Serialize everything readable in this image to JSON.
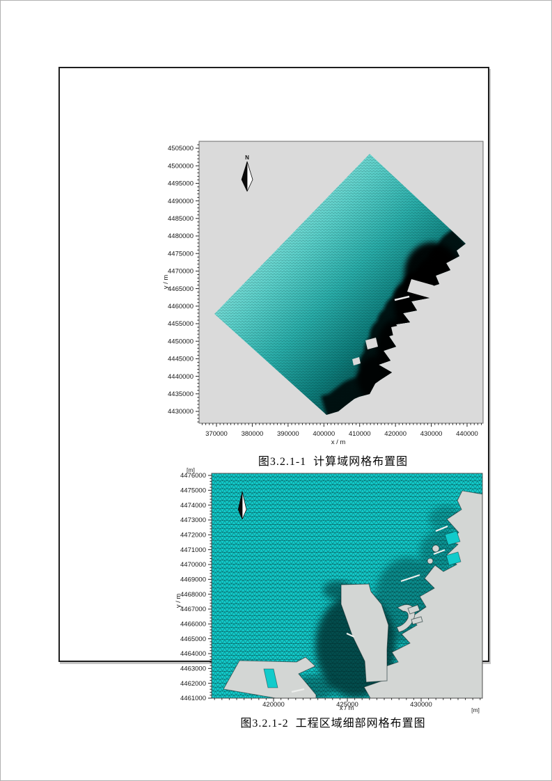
{
  "figures": [
    {
      "caption": "图3.2.1-1  计算域网格布置图",
      "x_axis_label": "x / m",
      "y_axis_label": "y / m",
      "north_label": "N",
      "x_ticks": [
        370000,
        380000,
        390000,
        400000,
        410000,
        420000,
        430000,
        440000
      ],
      "y_ticks": [
        4505000,
        4500000,
        4495000,
        4490000,
        4485000,
        4480000,
        4475000,
        4470000,
        4465000,
        4460000,
        4455000,
        4450000,
        4445000,
        4440000,
        4435000,
        4430000
      ],
      "x_minor_step": 1000,
      "y_minor_step": 1000,
      "x_range_visible": [
        365100,
        444500
      ],
      "y_range_visible": [
        4426600,
        4507000
      ]
    },
    {
      "caption": "图3.2.1-2  工程区域细部网格布置图",
      "x_axis_label": "x / m",
      "y_axis_label": "y / m",
      "unit_label": "[m]",
      "x_ticks": [
        420000,
        425000,
        430000
      ],
      "y_ticks": [
        4476000,
        4475000,
        4474000,
        4473000,
        4472000,
        4471000,
        4470000,
        4469000,
        4468000,
        4467000,
        4466000,
        4465000,
        4464000,
        4463000,
        4462000,
        4461000
      ],
      "x_minor_step": 500,
      "y_minor_step": 200,
      "x_range_visible": [
        415800,
        434150
      ],
      "y_range_visible": [
        4461000,
        4476150
      ]
    }
  ]
}
